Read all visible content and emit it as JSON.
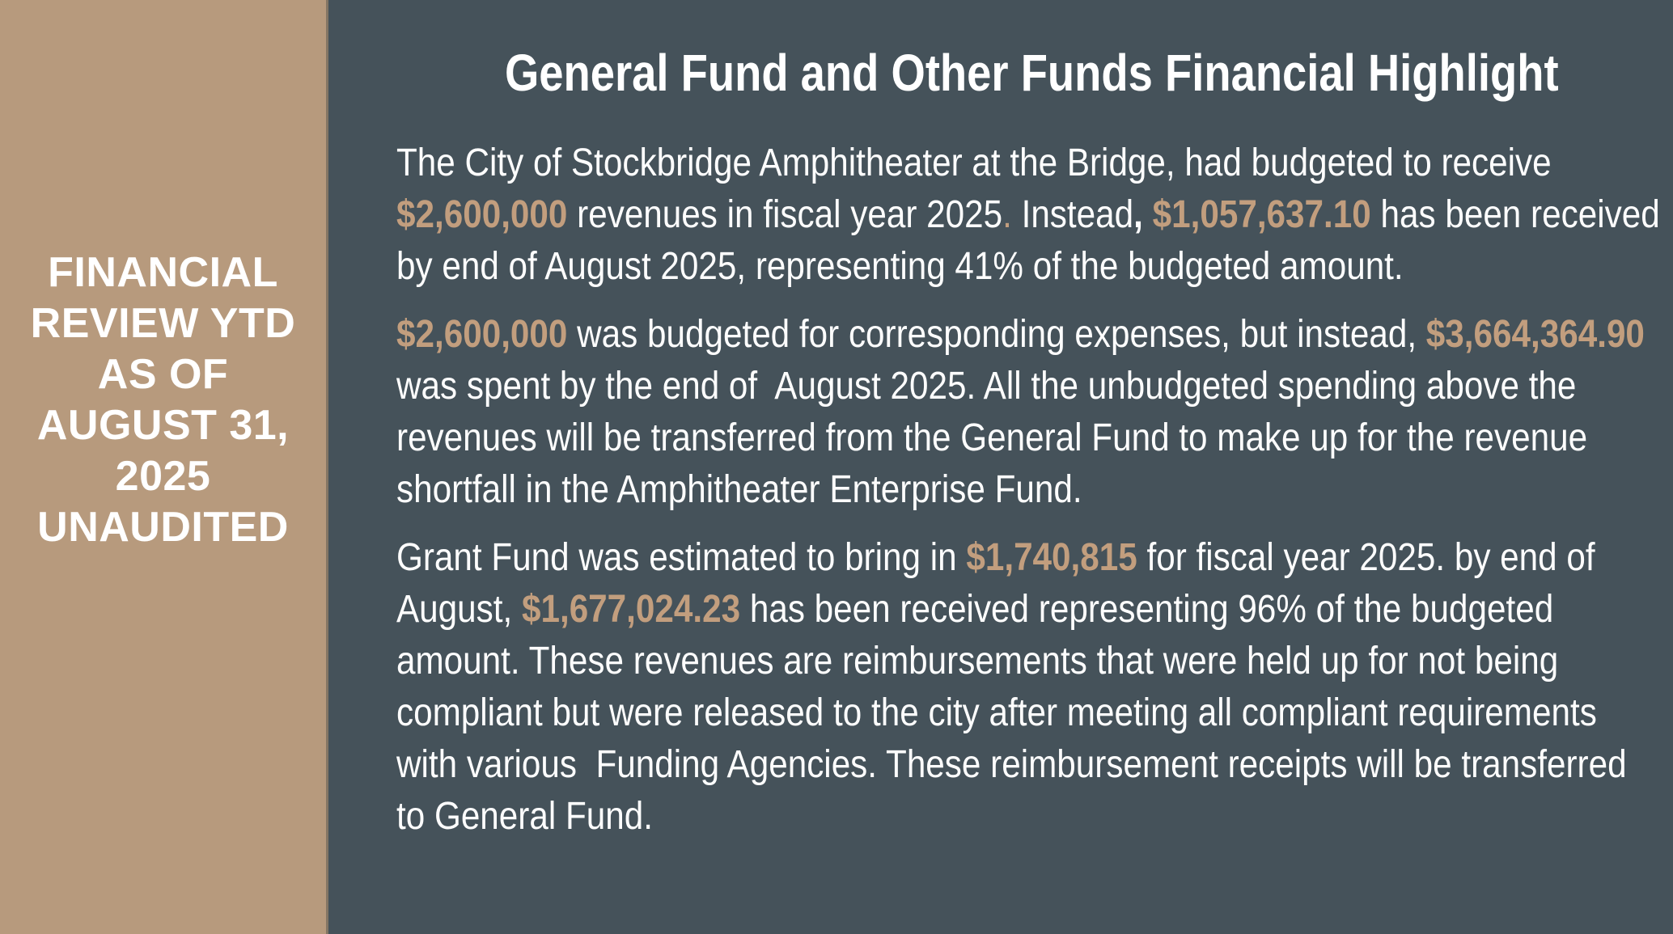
{
  "slide": {
    "sidebar": {
      "label": "FINANCIAL\nREVIEW YTD\nAS OF\nAUGUST 31,\n2025\nUNAUDITED"
    },
    "title": "General Fund and Other Funds Financial Highlight",
    "paragraphs": [
      {
        "runs": [
          {
            "t": "The City of Stockbridge Amphitheater at the Bridge, had budgeted to receive ",
            "s": "normal"
          },
          {
            "t": "$2,600,000",
            "s": "accent"
          },
          {
            "t": " revenues in fiscal year 2025",
            "s": "normal"
          },
          {
            "t": ".",
            "s": "accent-dot"
          },
          {
            "t": " Instead",
            "s": "normal"
          },
          {
            "t": ",",
            "s": "bold"
          },
          {
            "t": " ",
            "s": "normal"
          },
          {
            "t": "$1,057,637.10",
            "s": "accent"
          },
          {
            "t": " has been received by end of August 2025, representing 41% of the budgeted amount.",
            "s": "normal"
          }
        ]
      },
      {
        "runs": [
          {
            "t": "$2,600,000",
            "s": "accent"
          },
          {
            "t": " was budgeted for corresponding expenses, but instead, ",
            "s": "normal"
          },
          {
            "t": "$3,664,364.90",
            "s": "accent"
          },
          {
            "t": " was spent by the end of  August 2025. All the unbudgeted spending above the revenues will be transferred from the General Fund to make up for the revenue shortfall in the Amphitheater Enterprise Fund.",
            "s": "normal"
          }
        ]
      },
      {
        "runs": [
          {
            "t": "Grant Fund was estimated to bring in ",
            "s": "normal"
          },
          {
            "t": "$1,740,815",
            "s": "accent"
          },
          {
            "t": " for fiscal year 2025. by end of August, ",
            "s": "normal"
          },
          {
            "t": "$1,677,024.23",
            "s": "accent"
          },
          {
            "t": " has been received representing 96% of the budgeted amount. These revenues are reimbursements that were held up for not being compliant but were released to the city after meeting all compliant requirements with various  Funding Agencies. These reimbursement receipts will be transferred to General Fund.",
            "s": "normal"
          }
        ]
      }
    ],
    "colors": {
      "sidebar_bg": "#b79a7d",
      "content_bg": "#45525a",
      "accent": "#c29e7e",
      "text": "#ffffff"
    }
  }
}
